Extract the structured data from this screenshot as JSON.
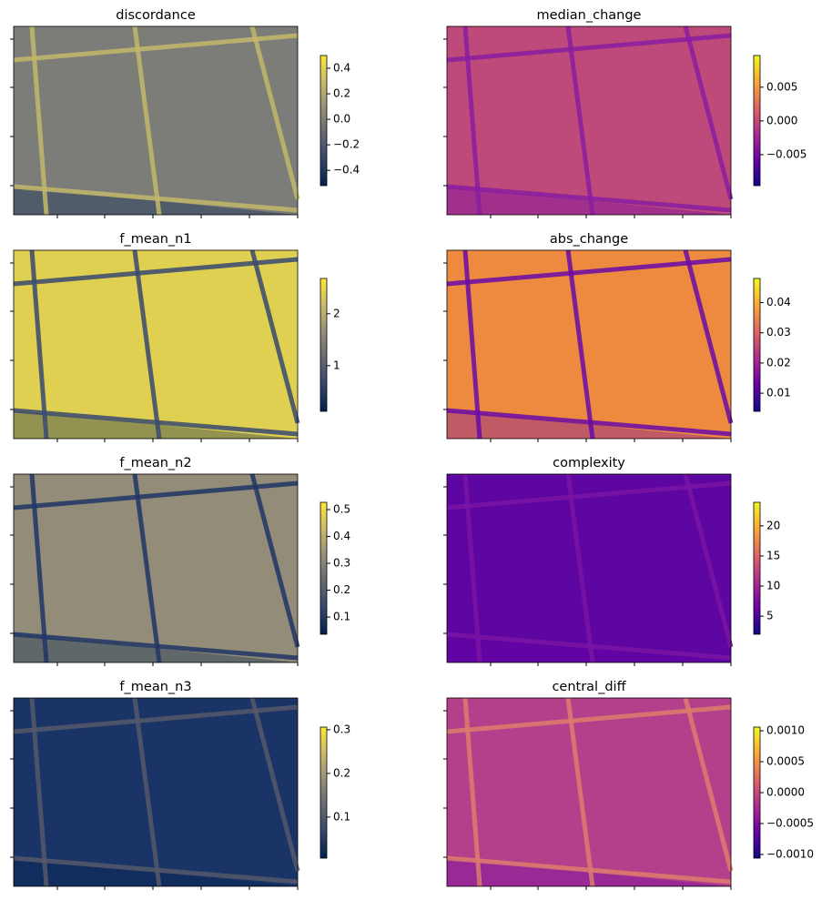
{
  "chart_data": [
    {
      "type": "heatmap",
      "title": "discordance",
      "colormap": [
        "#00224e",
        "#35456c",
        "#666970",
        "#958f78",
        "#cbba69",
        "#fee838"
      ],
      "image_color": "#7c7c78",
      "line_color": "#c4b86a",
      "clim": [
        -0.52,
        0.5
      ],
      "cticks": [
        {
          "value": -0.4,
          "label": "−0.4"
        },
        {
          "value": -0.2,
          "label": "−0.2"
        },
        {
          "value": 0,
          "label": "0.0"
        },
        0.2,
        0.4
      ]
    },
    {
      "type": "heatmap",
      "title": "median_change",
      "colormap": [
        "#0d0887",
        "#6a00a8",
        "#b12a90",
        "#e16462",
        "#fca636",
        "#f0f921"
      ],
      "image_color": "#be4a7c",
      "line_color": "#8a1ea0",
      "clim": [
        -0.0096,
        0.0097
      ],
      "cticks": [
        {
          "value": -0.005,
          "label": "−0.005"
        },
        {
          "value": 0,
          "label": "0.000"
        },
        0.005
      ]
    },
    {
      "type": "heatmap",
      "title": "f_mean_n1",
      "colormap": [
        "#00224e",
        "#35456c",
        "#666970",
        "#958f78",
        "#cbba69",
        "#fee838"
      ],
      "image_color": "#e0d052",
      "line_color": "#3a4a70",
      "clim": [
        0.12,
        2.68
      ],
      "cticks": [
        1,
        2
      ]
    },
    {
      "type": "heatmap",
      "title": "abs_change",
      "colormap": [
        "#0d0887",
        "#6a00a8",
        "#b12a90",
        "#e16462",
        "#fca636",
        "#f0f921"
      ],
      "image_color": "#ee8a40",
      "line_color": "#6a0aa8",
      "clim": [
        0.004,
        0.048
      ],
      "cticks": [
        0.01,
        0.02,
        0.03,
        0.04
      ]
    },
    {
      "type": "heatmap",
      "title": "f_mean_n2",
      "colormap": [
        "#00224e",
        "#35456c",
        "#666970",
        "#958f78",
        "#cbba69",
        "#fee838"
      ],
      "image_color": "#928c78",
      "line_color": "#203666",
      "clim": [
        0.036,
        0.527
      ],
      "cticks": [
        0.1,
        0.2,
        0.3,
        0.4,
        0.5
      ]
    },
    {
      "type": "heatmap",
      "title": "complexity",
      "colormap": [
        "#0d0887",
        "#6a00a8",
        "#b12a90",
        "#e16462",
        "#fca636",
        "#f0f921"
      ],
      "image_color": "#5e06a2",
      "line_color": "#7a14a4",
      "clim": [
        2.0,
        23.9
      ],
      "cticks": [
        5,
        10,
        15,
        20
      ]
    },
    {
      "type": "heatmap",
      "title": "f_mean_n3",
      "colormap": [
        "#00224e",
        "#35456c",
        "#666970",
        "#958f78",
        "#cbba69",
        "#fee838"
      ],
      "image_color": "#1a3468",
      "line_color": "#55596a",
      "clim": [
        0.006,
        0.306
      ],
      "cticks": [
        0.1,
        0.2,
        0.3
      ]
    },
    {
      "type": "heatmap",
      "title": "central_diff",
      "colormap": [
        "#0d0887",
        "#6a00a8",
        "#b12a90",
        "#e16462",
        "#fca636",
        "#f0f921"
      ],
      "image_color": "#b3408a",
      "line_color": "#de7c6c",
      "clim": [
        -0.00106,
        0.00106
      ],
      "cticks": [
        {
          "value": -0.001,
          "label": "−0.0010"
        },
        {
          "value": -0.0005,
          "label": "−0.0005"
        },
        {
          "value": 0,
          "label": "0.0000"
        },
        {
          "value": 0.0005,
          "label": "0.0005"
        },
        {
          "value": 0.001,
          "label": "0.0010"
        }
      ]
    }
  ]
}
